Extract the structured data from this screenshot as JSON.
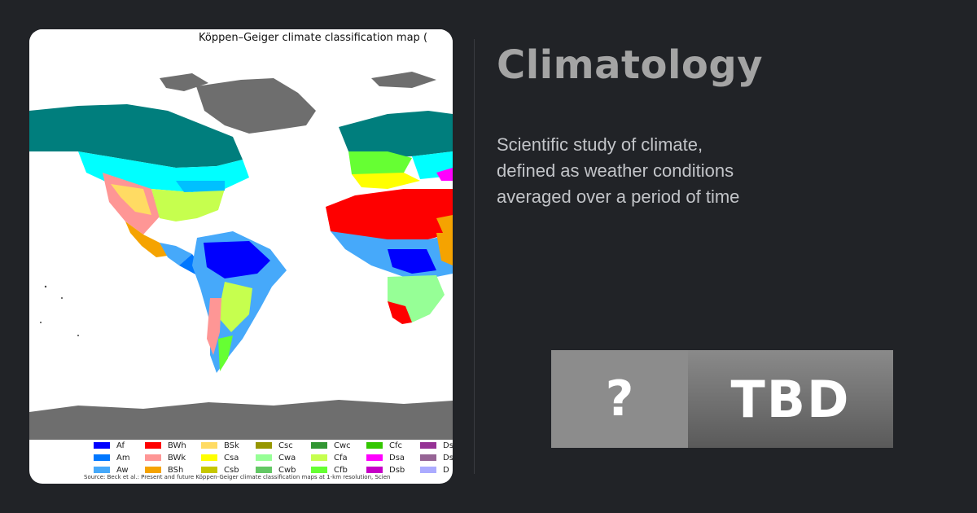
{
  "map": {
    "title": "Köppen–Geiger climate classification map (",
    "source": "Source: Beck et al.: Present and future Köppen-Geiger climate classification maps at 1-km resolution, Scien",
    "legend": [
      {
        "code": "Af",
        "color": "#0000fe"
      },
      {
        "code": "Am",
        "color": "#0077ff"
      },
      {
        "code": "Aw",
        "color": "#46a9fa"
      },
      {
        "code": "BWh",
        "color": "#fe0000"
      },
      {
        "code": "BWk",
        "color": "#fe9695"
      },
      {
        "code": "BSh",
        "color": "#f5a301"
      },
      {
        "code": "BSk",
        "color": "#ffdb63"
      },
      {
        "code": "Csa",
        "color": "#ffff00"
      },
      {
        "code": "Csb",
        "color": "#c6c700"
      },
      {
        "code": "Csc",
        "color": "#969600"
      },
      {
        "code": "Cwa",
        "color": "#96ff96"
      },
      {
        "code": "Cwb",
        "color": "#63c764"
      },
      {
        "code": "Cwc",
        "color": "#329633"
      },
      {
        "code": "Cfa",
        "color": "#c6ff4e"
      },
      {
        "code": "Cfb",
        "color": "#66ff33"
      },
      {
        "code": "Cfc",
        "color": "#33c701"
      },
      {
        "code": "Dsa",
        "color": "#ff00fe"
      },
      {
        "code": "Dsb",
        "color": "#c600c7"
      },
      {
        "code": "Ds",
        "color": "#963295"
      },
      {
        "code": "Ds",
        "color": "#966495"
      },
      {
        "code": "D",
        "color": "#ababff"
      }
    ]
  },
  "topic": {
    "title": "Climatology",
    "description_lines": [
      "Scientific study of climate,",
      "defined as weather conditions",
      "averaged over a period of time"
    ]
  },
  "badge": {
    "symbol": "?",
    "value": "TBD"
  }
}
